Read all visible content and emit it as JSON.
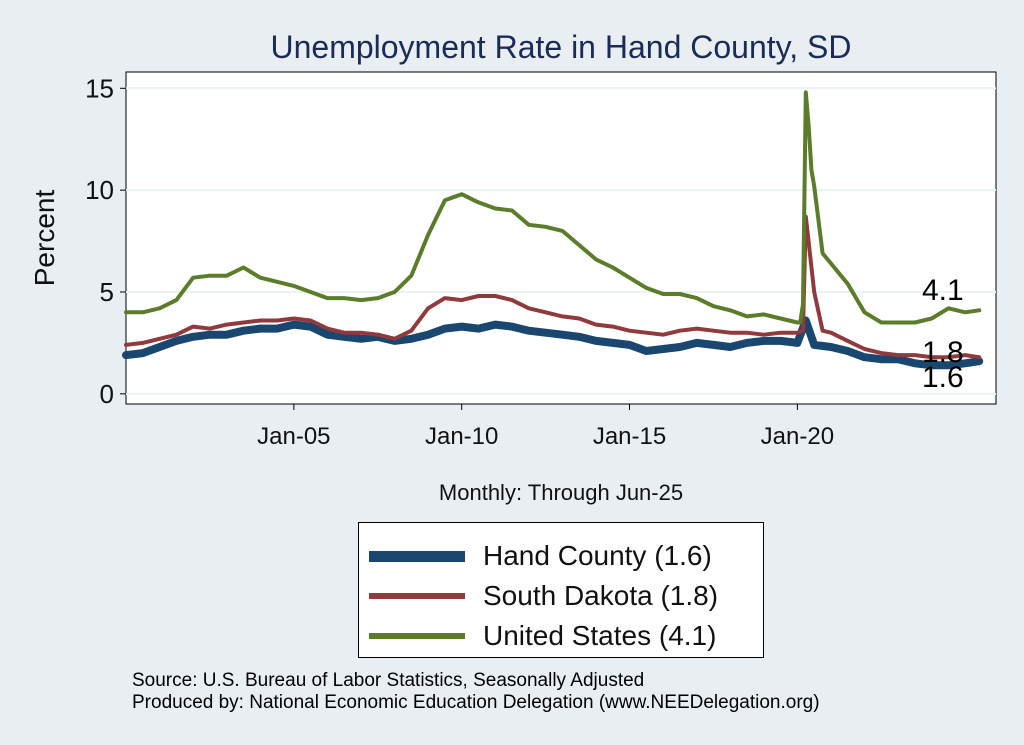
{
  "chart_data": {
    "type": "line",
    "title": "Unemployment Rate in Hand  County, SD",
    "ylabel": "Percent",
    "xlabel": "Monthly: Through Jun-25",
    "ylim": [
      -0.5,
      15.8
    ],
    "xlim": [
      "2000-01",
      "2025-12"
    ],
    "yticks": [
      0,
      5,
      10,
      15
    ],
    "xticks": [
      {
        "date": "2005-01",
        "label": "Jan-05"
      },
      {
        "date": "2010-01",
        "label": "Jan-10"
      },
      {
        "date": "2015-01",
        "label": "Jan-15"
      },
      {
        "date": "2020-01",
        "label": "Jan-20"
      }
    ],
    "grid": true,
    "end_labels": [
      "4.1",
      "1.8",
      "1.6"
    ],
    "series": [
      {
        "name": "Hand  County (1.6)",
        "color": "#1a476f",
        "points": [
          [
            "2000-01",
            1.9
          ],
          [
            "2000-07",
            2.0
          ],
          [
            "2001-01",
            2.3
          ],
          [
            "2001-07",
            2.6
          ],
          [
            "2002-01",
            2.8
          ],
          [
            "2002-07",
            2.9
          ],
          [
            "2003-01",
            2.9
          ],
          [
            "2003-07",
            3.1
          ],
          [
            "2004-01",
            3.2
          ],
          [
            "2004-07",
            3.2
          ],
          [
            "2005-01",
            3.4
          ],
          [
            "2005-07",
            3.3
          ],
          [
            "2006-01",
            2.9
          ],
          [
            "2006-07",
            2.8
          ],
          [
            "2007-01",
            2.7
          ],
          [
            "2007-07",
            2.8
          ],
          [
            "2008-01",
            2.6
          ],
          [
            "2008-07",
            2.7
          ],
          [
            "2009-01",
            2.9
          ],
          [
            "2009-07",
            3.2
          ],
          [
            "2010-01",
            3.3
          ],
          [
            "2010-07",
            3.2
          ],
          [
            "2011-01",
            3.4
          ],
          [
            "2011-07",
            3.3
          ],
          [
            "2012-01",
            3.1
          ],
          [
            "2012-07",
            3.0
          ],
          [
            "2013-01",
            2.9
          ],
          [
            "2013-07",
            2.8
          ],
          [
            "2014-01",
            2.6
          ],
          [
            "2014-07",
            2.5
          ],
          [
            "2015-01",
            2.4
          ],
          [
            "2015-07",
            2.1
          ],
          [
            "2016-01",
            2.2
          ],
          [
            "2016-07",
            2.3
          ],
          [
            "2017-01",
            2.5
          ],
          [
            "2017-07",
            2.4
          ],
          [
            "2018-01",
            2.3
          ],
          [
            "2018-07",
            2.5
          ],
          [
            "2019-01",
            2.6
          ],
          [
            "2019-07",
            2.6
          ],
          [
            "2020-01",
            2.5
          ],
          [
            "2020-04",
            3.6
          ],
          [
            "2020-07",
            2.4
          ],
          [
            "2021-01",
            2.3
          ],
          [
            "2021-07",
            2.1
          ],
          [
            "2022-01",
            1.8
          ],
          [
            "2022-07",
            1.7
          ],
          [
            "2023-01",
            1.7
          ],
          [
            "2023-07",
            1.5
          ],
          [
            "2024-01",
            1.4
          ],
          [
            "2024-07",
            1.4
          ],
          [
            "2025-01",
            1.5
          ],
          [
            "2025-06",
            1.6
          ]
        ]
      },
      {
        "name": "South Dakota (1.8)",
        "color": "#903a3d",
        "points": [
          [
            "2000-01",
            2.4
          ],
          [
            "2000-07",
            2.5
          ],
          [
            "2001-01",
            2.7
          ],
          [
            "2001-07",
            2.9
          ],
          [
            "2002-01",
            3.3
          ],
          [
            "2002-07",
            3.2
          ],
          [
            "2003-01",
            3.4
          ],
          [
            "2003-07",
            3.5
          ],
          [
            "2004-01",
            3.6
          ],
          [
            "2004-07",
            3.6
          ],
          [
            "2005-01",
            3.7
          ],
          [
            "2005-07",
            3.6
          ],
          [
            "2006-01",
            3.2
          ],
          [
            "2006-07",
            3.0
          ],
          [
            "2007-01",
            3.0
          ],
          [
            "2007-07",
            2.9
          ],
          [
            "2008-01",
            2.7
          ],
          [
            "2008-07",
            3.1
          ],
          [
            "2009-01",
            4.2
          ],
          [
            "2009-07",
            4.7
          ],
          [
            "2010-01",
            4.6
          ],
          [
            "2010-07",
            4.8
          ],
          [
            "2011-01",
            4.8
          ],
          [
            "2011-07",
            4.6
          ],
          [
            "2012-01",
            4.2
          ],
          [
            "2012-07",
            4.0
          ],
          [
            "2013-01",
            3.8
          ],
          [
            "2013-07",
            3.7
          ],
          [
            "2014-01",
            3.4
          ],
          [
            "2014-07",
            3.3
          ],
          [
            "2015-01",
            3.1
          ],
          [
            "2015-07",
            3.0
          ],
          [
            "2016-01",
            2.9
          ],
          [
            "2016-07",
            3.1
          ],
          [
            "2017-01",
            3.2
          ],
          [
            "2017-07",
            3.1
          ],
          [
            "2018-01",
            3.0
          ],
          [
            "2018-07",
            3.0
          ],
          [
            "2019-01",
            2.9
          ],
          [
            "2019-07",
            3.0
          ],
          [
            "2020-01",
            3.0
          ],
          [
            "2020-03",
            3.1
          ],
          [
            "2020-04",
            8.7
          ],
          [
            "2020-07",
            5.0
          ],
          [
            "2020-10",
            3.1
          ],
          [
            "2021-01",
            3.0
          ],
          [
            "2021-07",
            2.6
          ],
          [
            "2022-01",
            2.2
          ],
          [
            "2022-07",
            2.0
          ],
          [
            "2023-01",
            1.9
          ],
          [
            "2023-07",
            1.9
          ],
          [
            "2024-01",
            1.8
          ],
          [
            "2024-07",
            1.8
          ],
          [
            "2025-01",
            1.9
          ],
          [
            "2025-06",
            1.8
          ]
        ]
      },
      {
        "name": "United States (4.1)",
        "color": "#5b7c29",
        "points": [
          [
            "2000-01",
            4.0
          ],
          [
            "2000-07",
            4.0
          ],
          [
            "2001-01",
            4.2
          ],
          [
            "2001-07",
            4.6
          ],
          [
            "2002-01",
            5.7
          ],
          [
            "2002-07",
            5.8
          ],
          [
            "2003-01",
            5.8
          ],
          [
            "2003-07",
            6.2
          ],
          [
            "2004-01",
            5.7
          ],
          [
            "2004-07",
            5.5
          ],
          [
            "2005-01",
            5.3
          ],
          [
            "2005-07",
            5.0
          ],
          [
            "2006-01",
            4.7
          ],
          [
            "2006-07",
            4.7
          ],
          [
            "2007-01",
            4.6
          ],
          [
            "2007-07",
            4.7
          ],
          [
            "2008-01",
            5.0
          ],
          [
            "2008-07",
            5.8
          ],
          [
            "2009-01",
            7.8
          ],
          [
            "2009-07",
            9.5
          ],
          [
            "2010-01",
            9.8
          ],
          [
            "2010-07",
            9.4
          ],
          [
            "2011-01",
            9.1
          ],
          [
            "2011-07",
            9.0
          ],
          [
            "2012-01",
            8.3
          ],
          [
            "2012-07",
            8.2
          ],
          [
            "2013-01",
            8.0
          ],
          [
            "2013-07",
            7.3
          ],
          [
            "2014-01",
            6.6
          ],
          [
            "2014-07",
            6.2
          ],
          [
            "2015-01",
            5.7
          ],
          [
            "2015-07",
            5.2
          ],
          [
            "2016-01",
            4.9
          ],
          [
            "2016-07",
            4.9
          ],
          [
            "2017-01",
            4.7
          ],
          [
            "2017-07",
            4.3
          ],
          [
            "2018-01",
            4.1
          ],
          [
            "2018-07",
            3.8
          ],
          [
            "2019-01",
            3.9
          ],
          [
            "2019-07",
            3.7
          ],
          [
            "2020-01",
            3.5
          ],
          [
            "2020-02",
            3.5
          ],
          [
            "2020-03",
            4.4
          ],
          [
            "2020-04",
            14.8
          ],
          [
            "2020-05",
            13.2
          ],
          [
            "2020-06",
            11.0
          ],
          [
            "2020-07",
            10.2
          ],
          [
            "2020-10",
            6.9
          ],
          [
            "2021-01",
            6.4
          ],
          [
            "2021-07",
            5.4
          ],
          [
            "2022-01",
            4.0
          ],
          [
            "2022-07",
            3.5
          ],
          [
            "2023-01",
            3.5
          ],
          [
            "2023-07",
            3.5
          ],
          [
            "2024-01",
            3.7
          ],
          [
            "2024-07",
            4.2
          ],
          [
            "2025-01",
            4.0
          ],
          [
            "2025-06",
            4.1
          ]
        ]
      }
    ]
  },
  "legend": {
    "items": [
      {
        "label": "Hand  County (1.6)",
        "color": "#1a476f"
      },
      {
        "label": "South Dakota (1.8)",
        "color": "#903a3d"
      },
      {
        "label": "United States (4.1)",
        "color": "#5b7c29"
      }
    ]
  },
  "source": {
    "line1": "Source: U.S. Bureau of Labor Statistics, Seasonally Adjusted",
    "line2": "Produced by: National Economic Education Delegation (www.NEEDelegation.org)"
  }
}
